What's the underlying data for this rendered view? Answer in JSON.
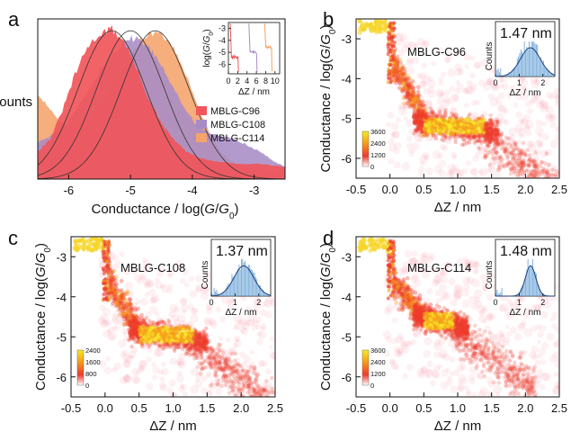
{
  "figure": {
    "panels": [
      "a",
      "b",
      "c",
      "d"
    ]
  },
  "chart_data": [
    {
      "panel": "a",
      "type": "area",
      "xlabel": "Conductance / log(G/G0)",
      "xlabel_parts": [
        "Conductance / log(",
        "G",
        "/",
        "G",
        "0",
        ")"
      ],
      "ylabel": "Counts",
      "xlim": [
        -6.5,
        -2.5
      ],
      "xticks": [
        -6,
        -5,
        -4,
        -3
      ],
      "series": [
        {
          "name": "MBLG-C96",
          "color": "#f0565a",
          "peak": -5.3,
          "x": [
            -6.5,
            -6.3,
            -6.1,
            -5.9,
            -5.7,
            -5.5,
            -5.3,
            -5.1,
            -4.9,
            -4.7,
            -4.5,
            -4.3,
            -4.1,
            -3.9,
            -3.7,
            -3.5,
            -3.3,
            -3.1,
            -2.9,
            -2.7,
            -2.5
          ],
          "values": [
            0.18,
            0.26,
            0.45,
            0.68,
            0.86,
            0.95,
            0.98,
            0.9,
            0.72,
            0.52,
            0.36,
            0.26,
            0.18,
            0.14,
            0.12,
            0.11,
            0.1,
            0.1,
            0.1,
            0.09,
            0.08
          ]
        },
        {
          "name": "MBLG-C108",
          "color": "#a98cc6",
          "peak": -5.0,
          "x": [
            -6.5,
            -6.3,
            -6.1,
            -5.9,
            -5.7,
            -5.5,
            -5.3,
            -5.1,
            -4.9,
            -4.7,
            -4.5,
            -4.3,
            -4.1,
            -3.9,
            -3.7,
            -3.5,
            -3.3,
            -3.1,
            -2.9,
            -2.7,
            -2.5
          ],
          "values": [
            0.24,
            0.28,
            0.34,
            0.44,
            0.56,
            0.7,
            0.82,
            0.91,
            0.92,
            0.86,
            0.75,
            0.6,
            0.44,
            0.34,
            0.3,
            0.28,
            0.26,
            0.22,
            0.18,
            0.12,
            0.08
          ]
        },
        {
          "name": "MBLG-C114",
          "color": "#f4a36a",
          "peak": -4.6,
          "x": [
            -6.5,
            -6.3,
            -6.1,
            -5.9,
            -5.7,
            -5.5,
            -5.3,
            -5.1,
            -4.9,
            -4.7,
            -4.5,
            -4.3,
            -4.1,
            -3.9,
            -3.7,
            -3.5,
            -3.3,
            -3.1,
            -2.9,
            -2.7,
            -2.5
          ],
          "values": [
            0.56,
            0.46,
            0.36,
            0.34,
            0.38,
            0.46,
            0.6,
            0.74,
            0.88,
            0.96,
            0.95,
            0.85,
            0.68,
            0.46,
            0.28,
            0.16,
            0.1,
            0.07,
            0.05,
            0.04,
            0.04
          ]
        }
      ],
      "inset": {
        "type": "line",
        "xlabel": "ΔZ / nm",
        "ylabel": "log(G/G0)",
        "ylabel_parts": [
          "log(",
          "G",
          "/",
          "G",
          "0",
          ")"
        ],
        "xticks": [
          0,
          2,
          4,
          6,
          8,
          10
        ],
        "yticks": [
          -3,
          -4,
          -5,
          -6
        ],
        "xlim": [
          0,
          11
        ],
        "ylim": [
          -6.8,
          -2.5
        ]
      }
    },
    {
      "panel": "b",
      "type": "heatmap",
      "label": "MBLG-C96",
      "xlabel": "ΔZ / nm",
      "ylabel": "Conductance / log(G/G0)",
      "ylabel_parts": [
        "Conductance / log(",
        "G",
        "/",
        "G",
        "0",
        ")"
      ],
      "xlim": [
        -0.5,
        2.5
      ],
      "ylim": [
        -6.5,
        -2.5
      ],
      "xticks": [
        "-0.5",
        "0.0",
        "0.5",
        "1.0",
        "1.5",
        "2.0",
        "2.5"
      ],
      "yticks": [
        -3,
        -4,
        -5,
        -6
      ],
      "colorbar_ticks": [
        3600,
        2400,
        1200,
        0
      ],
      "plateau_level": -5.2,
      "plateau_end": 1.5,
      "inset": {
        "type": "histogram",
        "value": "1.47 nm",
        "peak": 1.47,
        "ylabel": "Counts",
        "xlabel": "ΔZ / nm",
        "xticks": [
          0,
          1,
          2
        ],
        "xlim": [
          0,
          2.5
        ]
      }
    },
    {
      "panel": "c",
      "type": "heatmap",
      "label": "MBLG-C108",
      "xlabel": "ΔZ / nm",
      "ylabel": "Conductance / log(G/G0)",
      "ylabel_parts": [
        "Conductance / log(",
        "G",
        "/",
        "G",
        "0",
        ")"
      ],
      "xlim": [
        -0.5,
        2.5
      ],
      "ylim": [
        -6.5,
        -2.5
      ],
      "xticks": [
        "-0.5",
        "0.0",
        "0.5",
        "1.0",
        "1.5",
        "2.0",
        "2.5"
      ],
      "yticks": [
        -3,
        -4,
        -5,
        -6
      ],
      "colorbar_ticks": [
        2400,
        1600,
        800,
        0
      ],
      "plateau_level": -4.95,
      "plateau_end": 1.4,
      "inset": {
        "type": "histogram",
        "value": "1.37 nm",
        "peak": 1.37,
        "ylabel": "Counts",
        "xlabel": "ΔZ / nm",
        "xticks": [
          0,
          1,
          2
        ],
        "xlim": [
          0,
          2.5
        ]
      }
    },
    {
      "panel": "d",
      "type": "heatmap",
      "label": "MBLG-C114",
      "xlabel": "ΔZ / nm",
      "ylabel": "Conductance / log(G/G0)",
      "ylabel_parts": [
        "Conductance / log(",
        "G",
        "/",
        "G",
        "0",
        ")"
      ],
      "xlim": [
        -0.5,
        2.5
      ],
      "ylim": [
        -6.5,
        -2.5
      ],
      "xticks": [
        "-0.5",
        "0.0",
        "0.5",
        "1.0",
        "1.5",
        "2.0",
        "2.5"
      ],
      "yticks": [
        -3,
        -4,
        -5,
        -6
      ],
      "colorbar_ticks": [
        3600,
        2400,
        1200,
        0
      ],
      "plateau_level": -4.6,
      "plateau_end": 1.05,
      "inset": {
        "type": "histogram",
        "value": "1.48 nm",
        "peak": 1.48,
        "ylabel": "Counts",
        "xlabel": "ΔZ / nm",
        "xticks": [
          0,
          1,
          2
        ],
        "xlim": [
          0,
          2.5
        ]
      }
    }
  ]
}
